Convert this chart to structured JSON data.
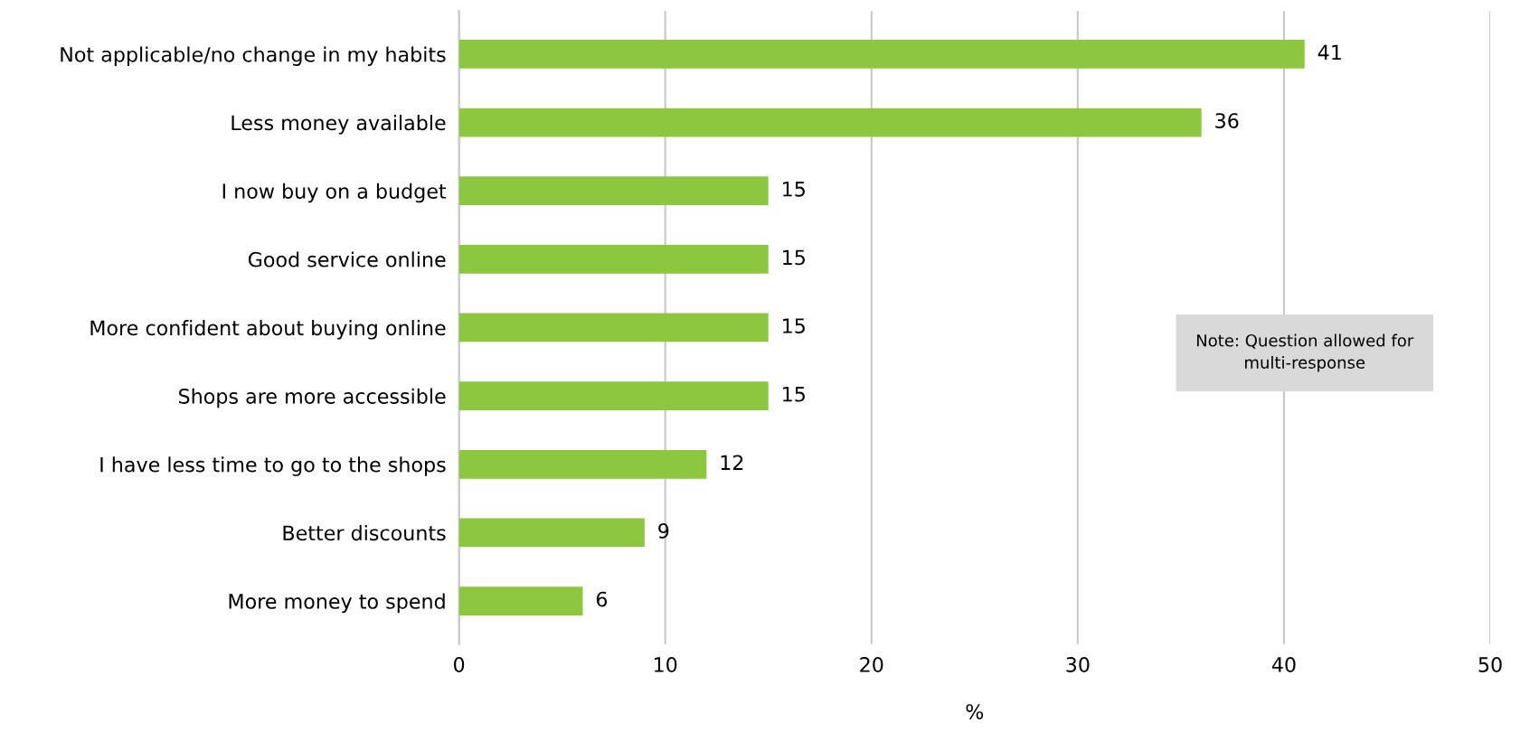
{
  "chart_data": {
    "type": "bar",
    "orientation": "horizontal",
    "xlabel": "%",
    "categories": [
      "Not applicable/no change in my habits",
      "Less money available",
      "I now buy on a budget",
      "Good service online",
      "More confident about buying online",
      "Shops are more accessible",
      "I have less time to go to the shops",
      "Better discounts",
      "More money to spend"
    ],
    "values": [
      41,
      36,
      15,
      15,
      15,
      15,
      12,
      9,
      6
    ],
    "color": "#8dc63f",
    "xlim": [
      0,
      50
    ],
    "xticks": [
      0,
      10,
      20,
      30,
      40,
      50
    ],
    "grid": "x",
    "data_labels": true,
    "annotations": [
      "Note: Question allowed for\nmulti-response"
    ]
  }
}
